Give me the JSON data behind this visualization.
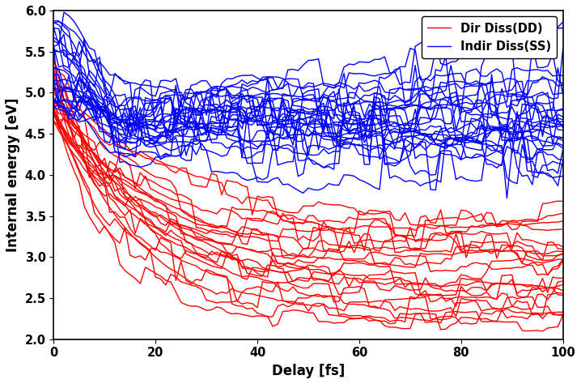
{
  "xlabel": "Delay [fs]",
  "ylabel": "Internal energy [eV]",
  "xlim": [
    0,
    100
  ],
  "ylim": [
    2,
    6
  ],
  "yticks": [
    2,
    2.5,
    3,
    3.5,
    4,
    4.5,
    5,
    5.5,
    6
  ],
  "xticks": [
    0,
    20,
    40,
    60,
    80,
    100
  ],
  "red_color": "#ff0000",
  "blue_color": "#0000ff",
  "legend_dd": "Dir Diss(DD)",
  "legend_ss": "Indir Diss(SS)",
  "n_red": 22,
  "n_blue": 28,
  "n_points": 101,
  "linewidth": 1.0,
  "seed": 7
}
